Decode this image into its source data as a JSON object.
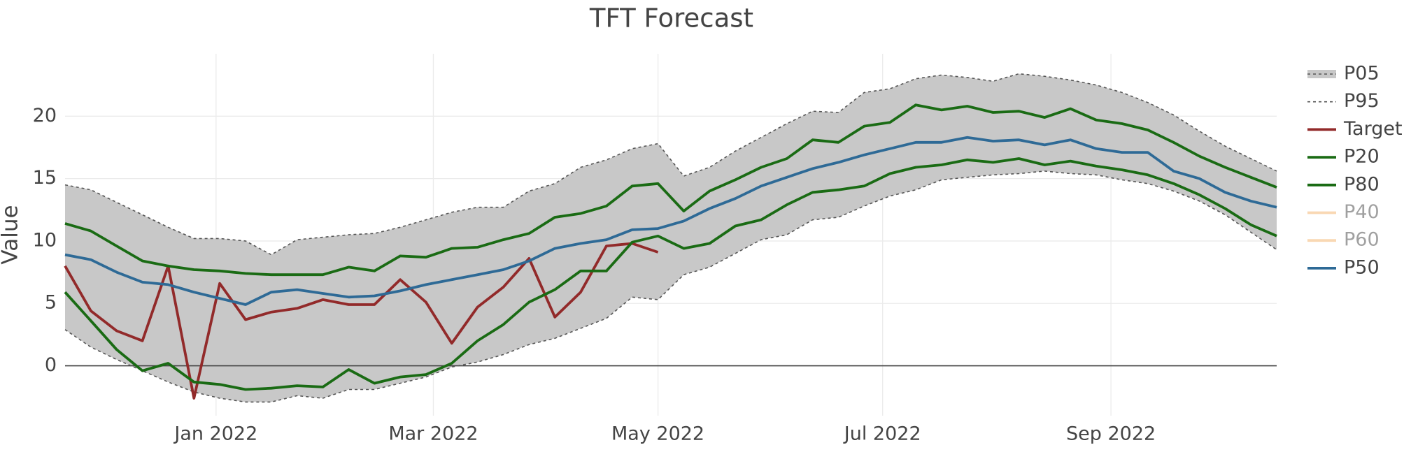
{
  "chart_data": {
    "type": "line",
    "title": "TFT Forecast",
    "y_label": "Value",
    "x_start": "2021-11-21",
    "x_step_days": 7,
    "xlim": [
      "2021-11-21",
      "2022-10-16"
    ],
    "xticks": [
      {
        "value": "2022-01-01",
        "label": "Jan 2022"
      },
      {
        "value": "2022-03-01",
        "label": "Mar 2022"
      },
      {
        "value": "2022-05-01",
        "label": "May 2022"
      },
      {
        "value": "2022-07-01",
        "label": "Jul 2022"
      },
      {
        "value": "2022-09-01",
        "label": "Sep 2022"
      }
    ],
    "ylim": [
      -4,
      25
    ],
    "yticks": [
      0,
      5,
      10,
      15,
      20
    ],
    "grid": true,
    "zeroline": true,
    "legend": "right",
    "series": [
      {
        "name": "P05",
        "color": "#555555",
        "dash": true,
        "fill": "#c8c8c8",
        "values": [
          2.9,
          1.5,
          0.5,
          -0.4,
          -1.3,
          -2.1,
          -2.6,
          -2.9,
          -2.9,
          -2.4,
          -2.6,
          -1.9,
          -1.9,
          -1.4,
          -0.9,
          -0.1,
          0.3,
          0.9,
          1.7,
          2.2,
          3.0,
          3.8,
          5.5,
          5.3,
          7.3,
          7.9,
          9.0,
          10.1,
          10.5,
          11.7,
          11.9,
          12.8,
          13.6,
          14.1,
          14.9,
          15.1,
          15.3,
          15.4,
          15.6,
          15.4,
          15.3,
          14.9,
          14.6,
          14.0,
          13.2,
          12.1,
          10.7,
          9.3
        ]
      },
      {
        "name": "P95",
        "color": "#555555",
        "dash": true,
        "values": [
          14.5,
          14.1,
          13.1,
          12.1,
          11.1,
          10.2,
          10.2,
          10.0,
          8.9,
          10.1,
          10.3,
          10.5,
          10.6,
          11.1,
          11.7,
          12.3,
          12.7,
          12.7,
          14.0,
          14.6,
          15.9,
          16.5,
          17.4,
          17.8,
          15.2,
          15.9,
          17.2,
          18.3,
          19.4,
          20.4,
          20.3,
          21.9,
          22.2,
          23.0,
          23.3,
          23.1,
          22.8,
          23.4,
          23.2,
          22.9,
          22.5,
          21.9,
          21.1,
          20.1,
          18.8,
          17.6,
          16.6,
          15.6
        ]
      },
      {
        "name": "Target",
        "color": "#922a2a",
        "values": [
          8.0,
          4.4,
          2.8,
          2.0,
          8.0,
          -2.6,
          6.6,
          3.7,
          4.3,
          4.6,
          5.3,
          4.9,
          4.9,
          6.9,
          5.1,
          1.8,
          4.7,
          6.3,
          8.6,
          3.9,
          5.9,
          9.6,
          9.8,
          9.1
        ]
      },
      {
        "name": "P20",
        "color": "#1a6b14",
        "values": [
          5.9,
          3.6,
          1.3,
          -0.4,
          0.2,
          -1.3,
          -1.5,
          -1.9,
          -1.8,
          -1.6,
          -1.7,
          -0.3,
          -1.4,
          -0.9,
          -0.7,
          0.2,
          2.0,
          3.3,
          5.1,
          6.1,
          7.6,
          7.6,
          9.9,
          10.4,
          9.4,
          9.8,
          11.2,
          11.7,
          12.9,
          13.9,
          14.1,
          14.4,
          15.4,
          15.9,
          16.1,
          16.5,
          16.3,
          16.6,
          16.1,
          16.4,
          16.0,
          15.7,
          15.3,
          14.6,
          13.7,
          12.6,
          11.3,
          10.4
        ]
      },
      {
        "name": "P80",
        "color": "#1a6b14",
        "values": [
          11.4,
          10.8,
          9.6,
          8.4,
          8.0,
          7.7,
          7.6,
          7.4,
          7.3,
          7.3,
          7.3,
          7.9,
          7.6,
          8.8,
          8.7,
          9.4,
          9.5,
          10.1,
          10.6,
          11.9,
          12.2,
          12.8,
          14.4,
          14.6,
          12.4,
          14.0,
          14.9,
          15.9,
          16.6,
          18.1,
          17.9,
          19.2,
          19.5,
          20.9,
          20.5,
          20.8,
          20.3,
          20.4,
          19.9,
          20.6,
          19.7,
          19.4,
          18.9,
          17.9,
          16.8,
          15.9,
          15.1,
          14.3
        ]
      },
      {
        "name": "P40",
        "color": "#f4b26a",
        "visible": false
      },
      {
        "name": "P60",
        "color": "#f4b26a",
        "visible": false
      },
      {
        "name": "P50",
        "color": "#2e6a96",
        "values": [
          8.9,
          8.5,
          7.5,
          6.7,
          6.5,
          5.9,
          5.4,
          4.9,
          5.9,
          6.1,
          5.8,
          5.5,
          5.6,
          6.0,
          6.5,
          6.9,
          7.3,
          7.7,
          8.4,
          9.4,
          9.8,
          10.1,
          10.9,
          11.0,
          11.6,
          12.6,
          13.4,
          14.4,
          15.1,
          15.8,
          16.3,
          16.9,
          17.4,
          17.9,
          17.9,
          18.3,
          18.0,
          18.1,
          17.7,
          18.1,
          17.4,
          17.1,
          17.1,
          15.6,
          15.0,
          13.9,
          13.2,
          12.7
        ]
      }
    ]
  }
}
